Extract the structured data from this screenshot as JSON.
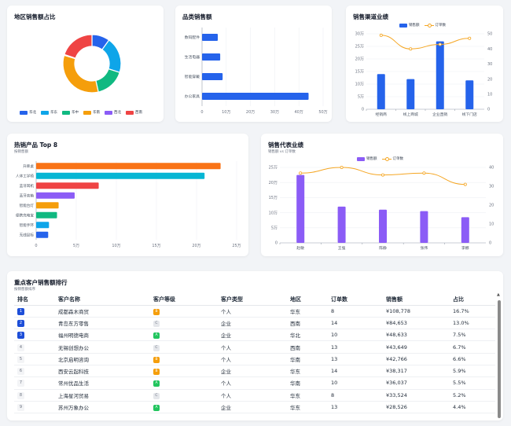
{
  "colors": {
    "blue": "#2563eb",
    "cyan": "#0ea5e9",
    "green": "#10b981",
    "orange": "#f59e0b",
    "purple": "#8b5cf6",
    "red": "#ef4444",
    "line": "#f5a623"
  },
  "region_card": {
    "title": "地区销售额占比",
    "chart_data": {
      "type": "pie",
      "variant": "donut",
      "legend_position": "bottom",
      "categories": [
        "华北",
        "华东",
        "华中",
        "华南",
        "西北",
        "西南"
      ],
      "values": [
        9,
        18,
        15,
        30,
        0.4,
        18
      ],
      "colors": [
        "#2563eb",
        "#0ea5e9",
        "#10b981",
        "#f59e0b",
        "#8b5cf6",
        "#ef4444"
      ]
    }
  },
  "category_card": {
    "title": "品类销售额",
    "chart_data": {
      "type": "bar",
      "orientation": "horizontal",
      "categories": [
        "数码配件",
        "生活电器",
        "智能穿戴",
        "办公家具"
      ],
      "values": [
        6.5,
        7.5,
        8.5,
        44
      ],
      "xlim": [
        0,
        50
      ],
      "xtick_labels": [
        "0",
        "10万",
        "20万",
        "30万",
        "40万",
        "50万"
      ],
      "color": "#2563eb"
    }
  },
  "channel_card": {
    "title": "销售渠道业绩",
    "chart_data": {
      "type": "bar",
      "categories": [
        "经销商",
        "线上商城",
        "企业直销",
        "线下门店"
      ],
      "legend_position": "top",
      "series": [
        {
          "name": "销售额",
          "kind": "bar",
          "axis": "left",
          "values": [
            14,
            12,
            27,
            11.5
          ],
          "color": "#2563eb"
        },
        {
          "name": "订单数",
          "kind": "line",
          "axis": "right",
          "values": [
            49,
            40,
            43,
            47
          ],
          "color": "#f5a623"
        }
      ],
      "ylim_left": [
        0,
        30
      ],
      "ylim_right": [
        0,
        50
      ],
      "ytick_labels_left": [
        "0",
        "5万",
        "10万",
        "15万",
        "20万",
        "25万",
        "30万"
      ],
      "ytick_labels_right": [
        "0",
        "10",
        "20",
        "30",
        "40",
        "50"
      ]
    }
  },
  "products_card": {
    "title": "热销产品 Top 8",
    "subtitle": "按销售额",
    "chart_data": {
      "type": "bar",
      "orientation": "horizontal",
      "categories": [
        "升降桌",
        "人体工学椅",
        "蓝牙耳机",
        "蓝牙音箱",
        "智能台灯",
        "便携充电宝",
        "智能手环",
        "无线鼠标"
      ],
      "values": [
        23,
        21,
        7.8,
        4.8,
        2.8,
        2.6,
        1.6,
        1.5
      ],
      "colors": [
        "#f97316",
        "#06b6d4",
        "#ef4444",
        "#8b5cf6",
        "#f59e0b",
        "#10b981",
        "#0ea5e9",
        "#2563eb"
      ],
      "xlim": [
        0,
        25
      ],
      "xtick_labels": [
        "0",
        "5万",
        "10万",
        "15万",
        "20万",
        "25万"
      ]
    }
  },
  "rep_card": {
    "title": "销售代表业绩",
    "subtitle": "销售额 vs 订单数",
    "chart_data": {
      "type": "bar",
      "categories": [
        "赵敏",
        "王强",
        "陈静",
        "张伟",
        "李娜"
      ],
      "legend_position": "top",
      "series": [
        {
          "name": "销售额",
          "kind": "bar",
          "axis": "left",
          "values": [
            22.5,
            12,
            11,
            10.5,
            8.5
          ],
          "color": "#8b5cf6"
        },
        {
          "name": "订单数",
          "kind": "line",
          "axis": "right",
          "values": [
            37,
            40,
            36,
            37,
            31
          ],
          "color": "#f5a623"
        }
      ],
      "ylim_left": [
        0,
        25
      ],
      "ylim_right": [
        0,
        40
      ],
      "ytick_labels_left": [
        "0",
        "5万",
        "10万",
        "15万",
        "20万",
        "25万"
      ],
      "ytick_labels_right": [
        "0",
        "10",
        "20",
        "30",
        "40"
      ]
    }
  },
  "customers_card": {
    "title": "重点客户销售额排行",
    "subtitle": "按销售额排序",
    "columns": [
      "排名",
      "客户名称",
      "客户等级",
      "客户类型",
      "地区",
      "订单数",
      "销售额",
      "占比"
    ],
    "rows": [
      {
        "rank": "1",
        "name": "成都森木商贸",
        "level": "B",
        "type": "个人",
        "region": "华东",
        "orders": "8",
        "sales": "¥108,778",
        "share": "16.7%"
      },
      {
        "rank": "2",
        "name": "青岛东方零售",
        "level": "C",
        "type": "企业",
        "region": "西南",
        "orders": "14",
        "sales": "¥84,653",
        "share": "13.0%"
      },
      {
        "rank": "3",
        "name": "福州明德电商",
        "level": "A",
        "type": "企业",
        "region": "华北",
        "orders": "10",
        "sales": "¥48,633",
        "share": "7.5%"
      },
      {
        "rank": "4",
        "name": "无锡创想办公",
        "level": "C",
        "type": "个人",
        "region": "西南",
        "orders": "13",
        "sales": "¥43,649",
        "share": "6.7%"
      },
      {
        "rank": "5",
        "name": "北京启明咨询",
        "level": "B",
        "type": "个人",
        "region": "华南",
        "orders": "13",
        "sales": "¥42,766",
        "share": "6.6%"
      },
      {
        "rank": "6",
        "name": "西安云起科技",
        "level": "B",
        "type": "企业",
        "region": "华东",
        "orders": "14",
        "sales": "¥38,317",
        "share": "5.9%"
      },
      {
        "rank": "7",
        "name": "常州优品生活",
        "level": "A",
        "type": "个人",
        "region": "华南",
        "orders": "10",
        "sales": "¥36,037",
        "share": "5.5%"
      },
      {
        "rank": "8",
        "name": "上海星河贸易",
        "level": "C",
        "type": "个人",
        "region": "华东",
        "orders": "8",
        "sales": "¥33,524",
        "share": "5.2%"
      },
      {
        "rank": "9",
        "name": "苏州万象办公",
        "level": "A",
        "type": "企业",
        "region": "华东",
        "orders": "13",
        "sales": "¥28,526",
        "share": "4.4%"
      }
    ],
    "level_colors": {
      "A": "#22c55e",
      "B": "#f59e0b",
      "C": "#e5e7eb"
    }
  }
}
